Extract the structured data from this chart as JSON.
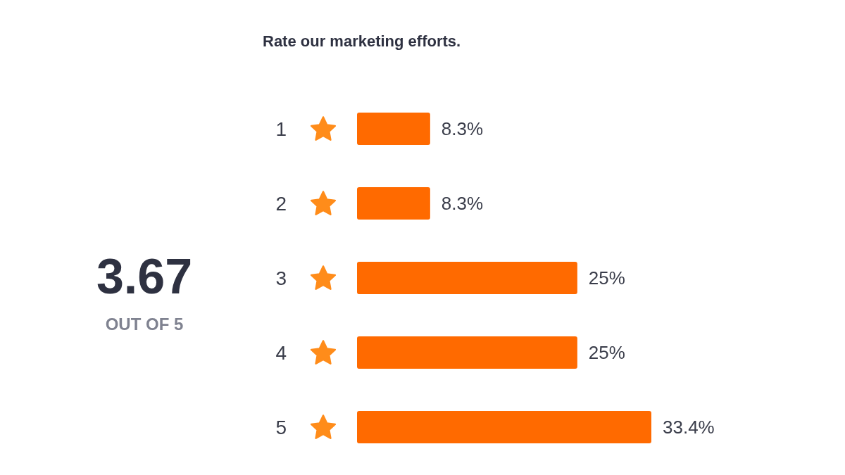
{
  "chart_data": {
    "type": "bar",
    "orientation": "horizontal",
    "title": "Rate our marketing efforts.",
    "categories": [
      "1",
      "2",
      "3",
      "4",
      "5"
    ],
    "values": [
      8.3,
      8.3,
      25,
      25,
      33.4
    ],
    "value_labels": [
      "8.3%",
      "8.3%",
      "25%",
      "25%",
      "33.4%"
    ],
    "color": "#ff6a00",
    "tick_labels": "y",
    "annotations": [
      "3.67",
      "OUT OF 5"
    ]
  }
}
